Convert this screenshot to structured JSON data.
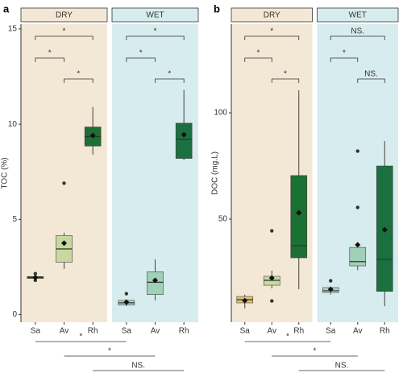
{
  "chart_data": [
    {
      "type": "boxplot",
      "panel_label": "a",
      "ylabel": "TOC (%)",
      "ylim": [
        -0.4,
        15.25
      ],
      "yticks": [
        0,
        5,
        10,
        15
      ],
      "categories": [
        "Sa",
        "Av",
        "Rh"
      ],
      "facets": [
        {
          "name": "DRY",
          "color": "#f3e8d5",
          "box_colors": [
            "#4d5a1f",
            "#c8d8a0",
            "#1b7034"
          ],
          "boxes": [
            {
              "min": 1.9,
              "q1": 1.9,
              "median": 1.95,
              "q3": 2.0,
              "max": 2.0,
              "mean": 1.95,
              "outliers": [
                2.15,
                1.8
              ]
            },
            {
              "min": 2.4,
              "q1": 2.75,
              "median": 3.45,
              "q3": 4.15,
              "max": 4.3,
              "mean": 3.75,
              "outliers": [
                6.9
              ]
            },
            {
              "min": 8.4,
              "q1": 8.85,
              "median": 9.35,
              "q3": 9.85,
              "max": 10.9,
              "mean": 9.4,
              "outliers": []
            }
          ],
          "comparisons": [
            "*",
            "*",
            "*"
          ]
        },
        {
          "name": "WET",
          "color": "#d7ecee",
          "box_colors": [
            "#a9d3bd",
            "#9fd0b8",
            "#1b7040"
          ],
          "boxes": [
            {
              "min": 0.45,
              "q1": 0.5,
              "median": 0.62,
              "q3": 0.75,
              "max": 0.8,
              "mean": 0.65,
              "outliers": [
                1.1
              ]
            },
            {
              "min": 0.75,
              "q1": 1.05,
              "median": 1.7,
              "q3": 2.25,
              "max": 2.9,
              "mean": 1.8,
              "outliers": []
            },
            {
              "min": 8.1,
              "q1": 8.2,
              "median": 9.2,
              "q3": 10.05,
              "max": 11.8,
              "mean": 9.45,
              "outliers": []
            }
          ],
          "comparisons": [
            "*",
            "*",
            "*"
          ]
        }
      ],
      "cross_comparisons": [
        "*",
        "*",
        "NS."
      ]
    },
    {
      "type": "boxplot",
      "panel_label": "b",
      "ylabel": "DOC (mg.L)",
      "ylim": [
        1.5,
        141.7
      ],
      "yticks": [
        50,
        100
      ],
      "categories": [
        "Sa",
        "Av",
        "Rh"
      ],
      "facets": [
        {
          "name": "DRY",
          "color": "#f3e8d5",
          "box_colors": [
            "#e3c07a",
            "#c8d8a0",
            "#1b7034"
          ],
          "boxes": [
            {
              "min": 8,
              "q1": 10.6,
              "median": 12.1,
              "q3": 13.6,
              "max": 14.5,
              "mean": 11.7,
              "outliers": []
            },
            {
              "min": 17.4,
              "q1": 18.9,
              "median": 21.2,
              "q3": 23.1,
              "max": 25.8,
              "mean": 22.3,
              "outliers": [
                44.5,
                11.5
              ]
            },
            {
              "min": 17,
              "q1": 31.8,
              "median": 37.5,
              "q3": 70.5,
              "max": 110.6,
              "mean": 53,
              "outliers": []
            }
          ],
          "comparisons": [
            "*",
            "*",
            "*"
          ]
        },
        {
          "name": "WET",
          "color": "#d7ecee",
          "box_colors": [
            "#a9d3bd",
            "#9fd0b8",
            "#1b7040"
          ],
          "boxes": [
            {
              "min": 14.5,
              "q1": 15.5,
              "median": 16.3,
              "q3": 17.8,
              "max": 18,
              "mean": 17,
              "outliers": [
                21
              ]
            },
            {
              "min": 26,
              "q1": 28,
              "median": 30,
              "q3": 36.7,
              "max": 36.7,
              "mean": 37.9,
              "outliers": [
                82,
                55.5
              ]
            },
            {
              "min": 9,
              "q1": 16,
              "median": 31,
              "q3": 75,
              "max": 86.7,
              "mean": 45,
              "outliers": []
            }
          ],
          "comparisons": [
            "NS.",
            "*",
            "NS."
          ]
        }
      ],
      "cross_comparisons": [
        "*",
        "*",
        "NS."
      ]
    }
  ]
}
